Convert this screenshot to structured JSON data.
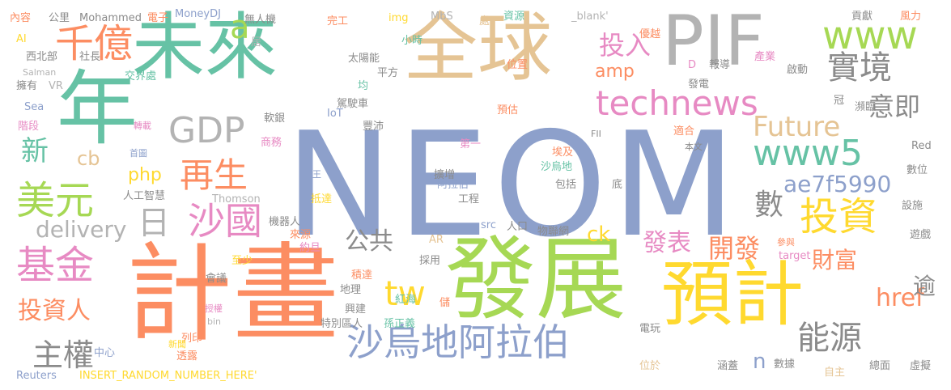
{
  "palette": {
    "blue": "#8da0cb",
    "green": "#66c2a5",
    "orange": "#fc8d62",
    "pink": "#e78ac3",
    "lime": "#a6d854",
    "yellow": "#ffd92f",
    "tan": "#e5c494",
    "gray": "#b3b3b3"
  },
  "words": [
    "NEOM",
    "計畫",
    "發展",
    "全球",
    "未來",
    "PIF",
    "預計",
    "年",
    "沙烏地阿拉伯",
    "千億",
    "technews",
    "www5",
    "基金",
    "投資",
    "美元",
    "再生",
    "沙國",
    "GDP",
    "www",
    "實境",
    "Future",
    "能源",
    "日",
    "主權",
    "投資人",
    "開發",
    "發表",
    "財富",
    "公共",
    "tw",
    "href",
    "ae7f5990",
    "delivery",
    "數",
    "新",
    "投入",
    "意即",
    "php",
    "amp",
    "cb",
    "ck",
    "逾",
    "a",
    "n",
    "內容",
    "公里",
    "Mohammed",
    "電子",
    "MoneyDJ",
    "無人機",
    "完工",
    "img",
    "MbS",
    "處",
    "資源",
    "_blank'",
    "優越",
    "貢獻",
    "風力",
    "AI",
    "西北部",
    "社長",
    "Salman",
    "擁有",
    "VR",
    "居",
    "太陽能",
    "小時",
    "平方",
    "交界處",
    "位置",
    "D",
    "報導",
    "產業",
    "啟動",
    "發電",
    "均",
    "駕駛車",
    "預估",
    "冠",
    "瀕臨",
    "IoT",
    "豐沛",
    "軟銀",
    "Sea",
    "階段",
    "轉載",
    "商務",
    "適合",
    "本文",
    "首圖",
    "第一",
    "擴增",
    "埃及",
    "沙烏地",
    "阿拉伯",
    "工程",
    "FII",
    "底",
    "Red",
    "數位",
    "王",
    "人工智慧",
    "Thomson",
    "抵達",
    "包括",
    "設施",
    "機器人",
    "人口",
    "物聯網",
    "src",
    "AR",
    "來源",
    "約旦",
    "遊戲",
    "參與",
    "至少",
    "target",
    "會議",
    "積達",
    "採用",
    "地理",
    "紅海",
    "授權",
    "儲",
    "興建",
    "特別區人",
    "孫正義",
    "bin",
    "列印",
    "新聞",
    "中心",
    "透露",
    "電玩",
    "位於",
    "涵蓋",
    "數據",
    "總面",
    "自主",
    "虛擬",
    "Reuters",
    "INSERT_RANDOM_NUMBER_HERE'"
  ]
}
